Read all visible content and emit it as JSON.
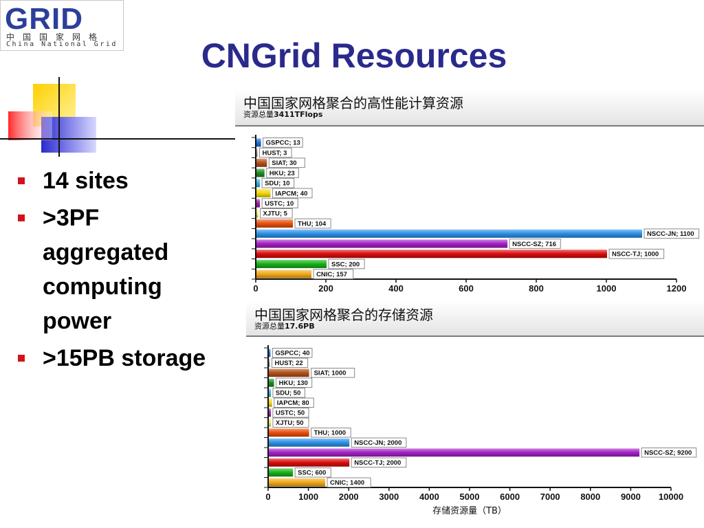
{
  "logo": {
    "word": "GRID",
    "chinese": "中国国家网格",
    "english": "China National Grid"
  },
  "slide_title": "CNGrid Resources",
  "bullets": [
    {
      "text": "14 sites"
    },
    {
      "text": ">3PF aggregated computing power"
    },
    {
      "text": ">15PB storage"
    }
  ],
  "colors": {
    "title": "#2a2a8c",
    "bullet_marker": "#d4121e"
  },
  "chart_data": [
    {
      "type": "bar",
      "orientation": "horizontal",
      "title": "中国国家网格聚合的高性能计算资源",
      "subtitle_prefix": "资源总量",
      "subtitle_value": "3411TFlops",
      "xlabel": "",
      "xlim": [
        0,
        1200
      ],
      "xticks": [
        0,
        200,
        400,
        600,
        800,
        1000,
        1200
      ],
      "grid": false,
      "categories": [
        "GSPCC",
        "HUST",
        "SIAT",
        "HKU",
        "SDU",
        "IAPCM",
        "USTC",
        "XJTU",
        "THU",
        "NSCC-JN",
        "NSCC-SZ",
        "NSCC-TJ",
        "SSC",
        "CNIC"
      ],
      "values": [
        13,
        3,
        30,
        23,
        10,
        40,
        10,
        5,
        104,
        1100,
        716,
        1000,
        200,
        157
      ],
      "labels": [
        "GSPCC; 13",
        "HUST; 3",
        "SIAT; 30",
        "HKU; 23",
        "SDU; 10",
        "IAPCM; 40",
        "USTC; 10",
        "XJTU; 5",
        "THU; 104",
        "NSCC-JN; 1100",
        "NSCC-SZ; 716",
        "NSCC-TJ; 1000",
        "SSC; 200",
        "CNIC; 157"
      ],
      "colors": [
        "#1e73d8",
        "#9a9a9a",
        "#b24f18",
        "#1e8c24",
        "#35b0e8",
        "#f2d80c",
        "#a020a8",
        "#e8e860",
        "#e84f0c",
        "#2a8fe6",
        "#a320c4",
        "#d80c0c",
        "#18b018",
        "#f0a818"
      ]
    },
    {
      "type": "bar",
      "orientation": "horizontal",
      "title": "中国国家网格聚合的存储资源",
      "subtitle_prefix": "资源总量",
      "subtitle_value": "17.6PB",
      "xlabel": "存储资源量（TB）",
      "xlim": [
        0,
        10000
      ],
      "xticks": [
        0,
        1000,
        2000,
        3000,
        4000,
        5000,
        6000,
        7000,
        8000,
        9000,
        10000
      ],
      "grid": false,
      "categories": [
        "GSPCC",
        "HUST",
        "SIAT",
        "HKU",
        "SDU",
        "IAPCM",
        "USTC",
        "XJTU",
        "THU",
        "NSCC-JN",
        "NSCC-SZ",
        "NSCC-TJ",
        "SSC",
        "CNIC"
      ],
      "values": [
        40,
        22,
        1000,
        130,
        50,
        80,
        50,
        50,
        1000,
        2000,
        9200,
        2000,
        600,
        1400
      ],
      "labels": [
        "GSPCC; 40",
        "HUST; 22",
        "SIAT; 1000",
        "HKU; 130",
        "SDU; 50",
        "IAPCM; 80",
        "USTC; 50",
        "XJTU; 50",
        "THU; 1000",
        "NSCC-JN; 2000",
        "NSCC-SZ; 9200",
        "NSCC-TJ; 2000",
        "SSC; 600",
        "CNIC; 1400"
      ],
      "colors": [
        "#1e73d8",
        "#9a9a9a",
        "#b24f18",
        "#1e8c24",
        "#35b0e8",
        "#f2d80c",
        "#a020a8",
        "#e8e860",
        "#e84f0c",
        "#2a8fe6",
        "#a320c4",
        "#d80c0c",
        "#18b018",
        "#f0a818"
      ]
    }
  ]
}
